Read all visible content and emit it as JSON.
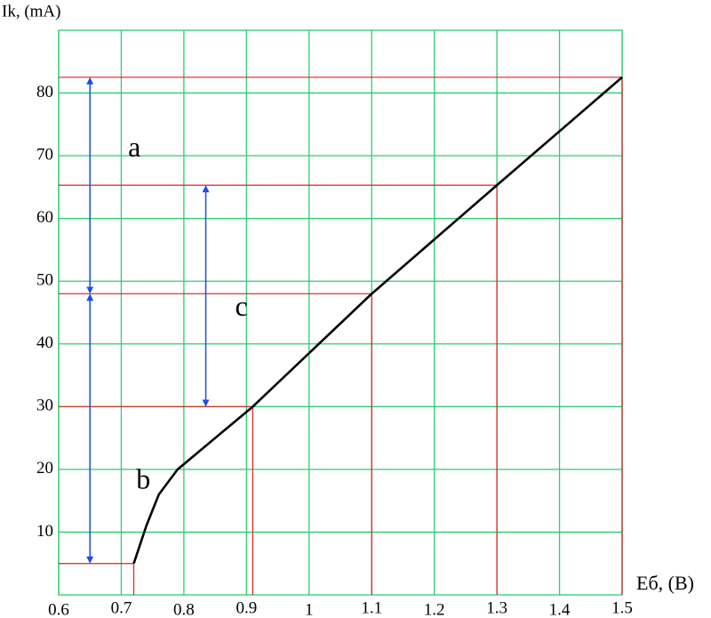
{
  "chart_data": {
    "type": "line",
    "x_label": "Еб, (В)",
    "y_label": "Ik, (mA)",
    "x": [
      0.72,
      0.74,
      0.76,
      0.79,
      0.91,
      1.1,
      1.3,
      1.5
    ],
    "series": [
      {
        "color": "#000000",
        "values": [
          5,
          11,
          16,
          20,
          30,
          48,
          65.3,
          82.5
        ]
      }
    ],
    "reference_points": {
      "color": "#e02020",
      "x": [
        0.72,
        0.91,
        1.1,
        1.3,
        1.5
      ],
      "y": [
        5,
        30,
        48,
        65.3,
        82.5
      ]
    },
    "annotations": [
      {
        "text": "a",
        "x": 0.65,
        "from": 82.5,
        "to": 48
      },
      {
        "text": "b",
        "x": 0.65,
        "from": 48,
        "to": 5
      },
      {
        "text": "c",
        "x": 0.835,
        "from": 65.3,
        "to": 30
      }
    ],
    "annotation_color": "#1a4fe0",
    "xlim": [
      0.6,
      1.5
    ],
    "xticks": [
      0.6,
      0.7,
      0.8,
      0.9,
      1,
      1.1,
      1.2,
      1.3,
      1.4,
      1.5
    ],
    "ylim": [
      0,
      90
    ],
    "yticks": [
      10,
      20,
      30,
      40,
      50,
      60,
      70,
      80
    ],
    "grid": true,
    "grid_color": "#2ecc71"
  }
}
